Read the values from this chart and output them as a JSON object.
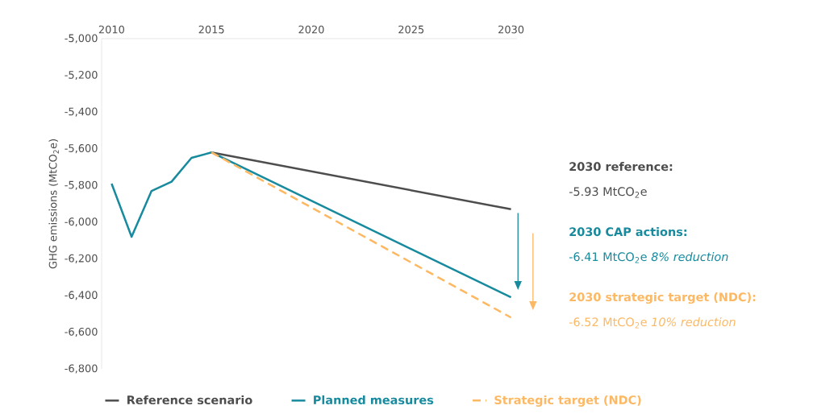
{
  "chart_data": {
    "type": "line",
    "ylabel": "GHG emissions (MtCO$_{2}$e)",
    "xlim": [
      2009.5,
      2030.3
    ],
    "xticks": [
      2010,
      2015,
      2020,
      2025,
      2030
    ],
    "ylim": [
      -6800,
      -5000
    ],
    "yticks": [
      {
        "value": -5000,
        "label": "-5,000"
      },
      {
        "value": -5200,
        "label": "-5,200"
      },
      {
        "value": -5400,
        "label": "-5,400"
      },
      {
        "value": -5600,
        "label": "-5,600"
      },
      {
        "value": -5800,
        "label": "-5,800"
      },
      {
        "value": -6000,
        "label": "-6,000"
      },
      {
        "value": -6200,
        "label": "-6,200"
      },
      {
        "value": -6400,
        "label": "-6,400"
      },
      {
        "value": -6600,
        "label": "-6,600"
      },
      {
        "value": -6800,
        "label": "-6,800"
      }
    ],
    "series": [
      {
        "name": "Reference scenario",
        "color": "#4d4d4d",
        "x": [
          2015,
          2030
        ],
        "values": [
          -5620,
          -5930
        ],
        "line_style": "solid"
      },
      {
        "name": "Planned measures",
        "color": "#178a9e",
        "x": [
          2010,
          2011,
          2012,
          2013,
          2014,
          2015,
          2030
        ],
        "values": [
          -5790,
          -6080,
          -5830,
          -5780,
          -5650,
          -5620,
          -6410
        ],
        "line_style": "solid"
      },
      {
        "name": "Strategic target (NDC)",
        "color": "#fdb863",
        "x": [
          2015,
          2030
        ],
        "values": [
          -5620,
          -6520
        ],
        "line_style": "dashed"
      }
    ],
    "annotations": [
      "**2030 reference:**",
      "-5.93 MtCO$_{2}$e",
      "**2030 CAP actions:**",
      "-6.41 MtCO$_{2}$e   *8% reduction*",
      "**2030 strategic target (NDC):**",
      "-6.52 MtCO$_{2}$e   *10% reduction*"
    ],
    "legend": "bottom",
    "grid": false,
    "marker": "none"
  }
}
